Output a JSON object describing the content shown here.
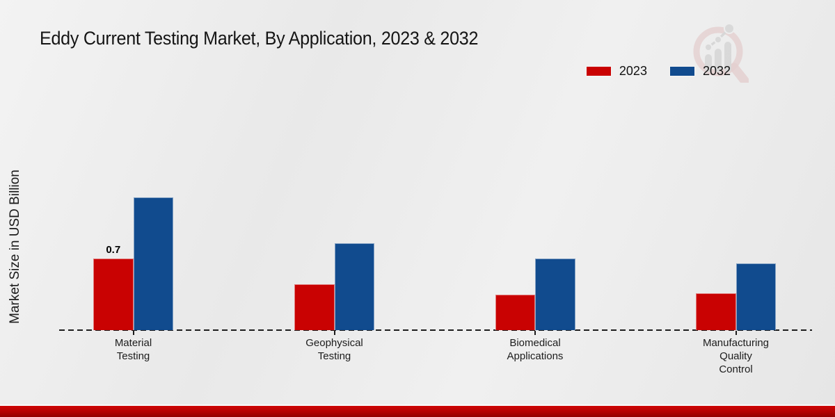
{
  "page": {
    "title": "Eddy Current Testing Market, By Application, 2023 & 2032"
  },
  "colors": {
    "series_2023": "#c90202",
    "series_2032": "#114b8e",
    "baseline": "#1c1c1c",
    "footer_strip": "#b20303",
    "background": "#ebebeb",
    "watermark_ring": "#dcb6b6",
    "watermark_bars": "#c9c9c9"
  },
  "watermark": {
    "name": "market-research-future-logo"
  },
  "chart_data": {
    "type": "bar",
    "title": "Eddy Current Testing Market, By Application, 2023 & 2032",
    "xlabel": "",
    "ylabel": "Market Size in USD Billion",
    "categories": [
      "Material\nTesting",
      "Geophysical\nTesting",
      "Biomedical\nApplications",
      "Manufacturing\nQuality\nControl"
    ],
    "series": [
      {
        "name": "2023",
        "color": "#c90202",
        "values": [
          0.7,
          0.45,
          0.35,
          0.36
        ]
      },
      {
        "name": "2032",
        "color": "#114b8e",
        "values": [
          1.3,
          0.85,
          0.7,
          0.65
        ]
      }
    ],
    "bar_labels": [
      {
        "series": "2023",
        "category_index": 0,
        "text": "0.7"
      }
    ],
    "ylim": [
      0,
      1.5
    ],
    "grid": false,
    "y_axis_ticks_visible": false,
    "legend_position": "top-right"
  }
}
